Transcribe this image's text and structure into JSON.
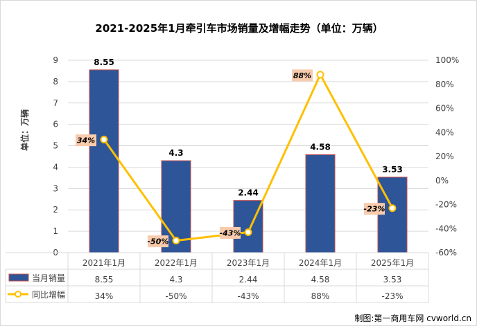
{
  "chart_data": {
    "type": "bar",
    "title": "2021-2025年1月牵引车市场销量及增幅走势（单位：万辆）",
    "ylabel": "单位：万辆",
    "categories": [
      "2021年1月",
      "2022年1月",
      "2023年1月",
      "2024年1月",
      "2025年1月"
    ],
    "ylim": [
      0,
      9
    ],
    "y_ticks": [
      "0",
      "1",
      "2",
      "3",
      "4",
      "5",
      "6",
      "7",
      "8",
      "9"
    ],
    "y2lim": [
      -60,
      100
    ],
    "y2_ticks": [
      "-60%",
      "-40%",
      "-20%",
      "0%",
      "20%",
      "40%",
      "60%",
      "80%",
      "100%"
    ],
    "series": [
      {
        "name": "当月销量",
        "type": "bar",
        "axis": "left",
        "values": [
          8.55,
          4.3,
          2.44,
          4.58,
          3.53
        ],
        "labels": [
          "8.55",
          "4.3",
          "2.44",
          "4.58",
          "3.53"
        ],
        "color": "#2E5597"
      },
      {
        "name": "同比增幅",
        "type": "line",
        "axis": "right",
        "values": [
          34,
          -50,
          -43,
          88,
          -23
        ],
        "labels": [
          "34%",
          "-50%",
          "-43%",
          "88%",
          "-23%"
        ],
        "color": "#FFC000"
      }
    ],
    "data_table": true
  },
  "source": "制图:第一商用车网 cvworld.cn",
  "colors": {
    "bar_fill": "#2E5597",
    "bar_stroke": "#C0504D",
    "line": "#FFC000",
    "label_bg": "#F8CBAD",
    "grid": "#D9D9D9",
    "text": "#404040"
  }
}
